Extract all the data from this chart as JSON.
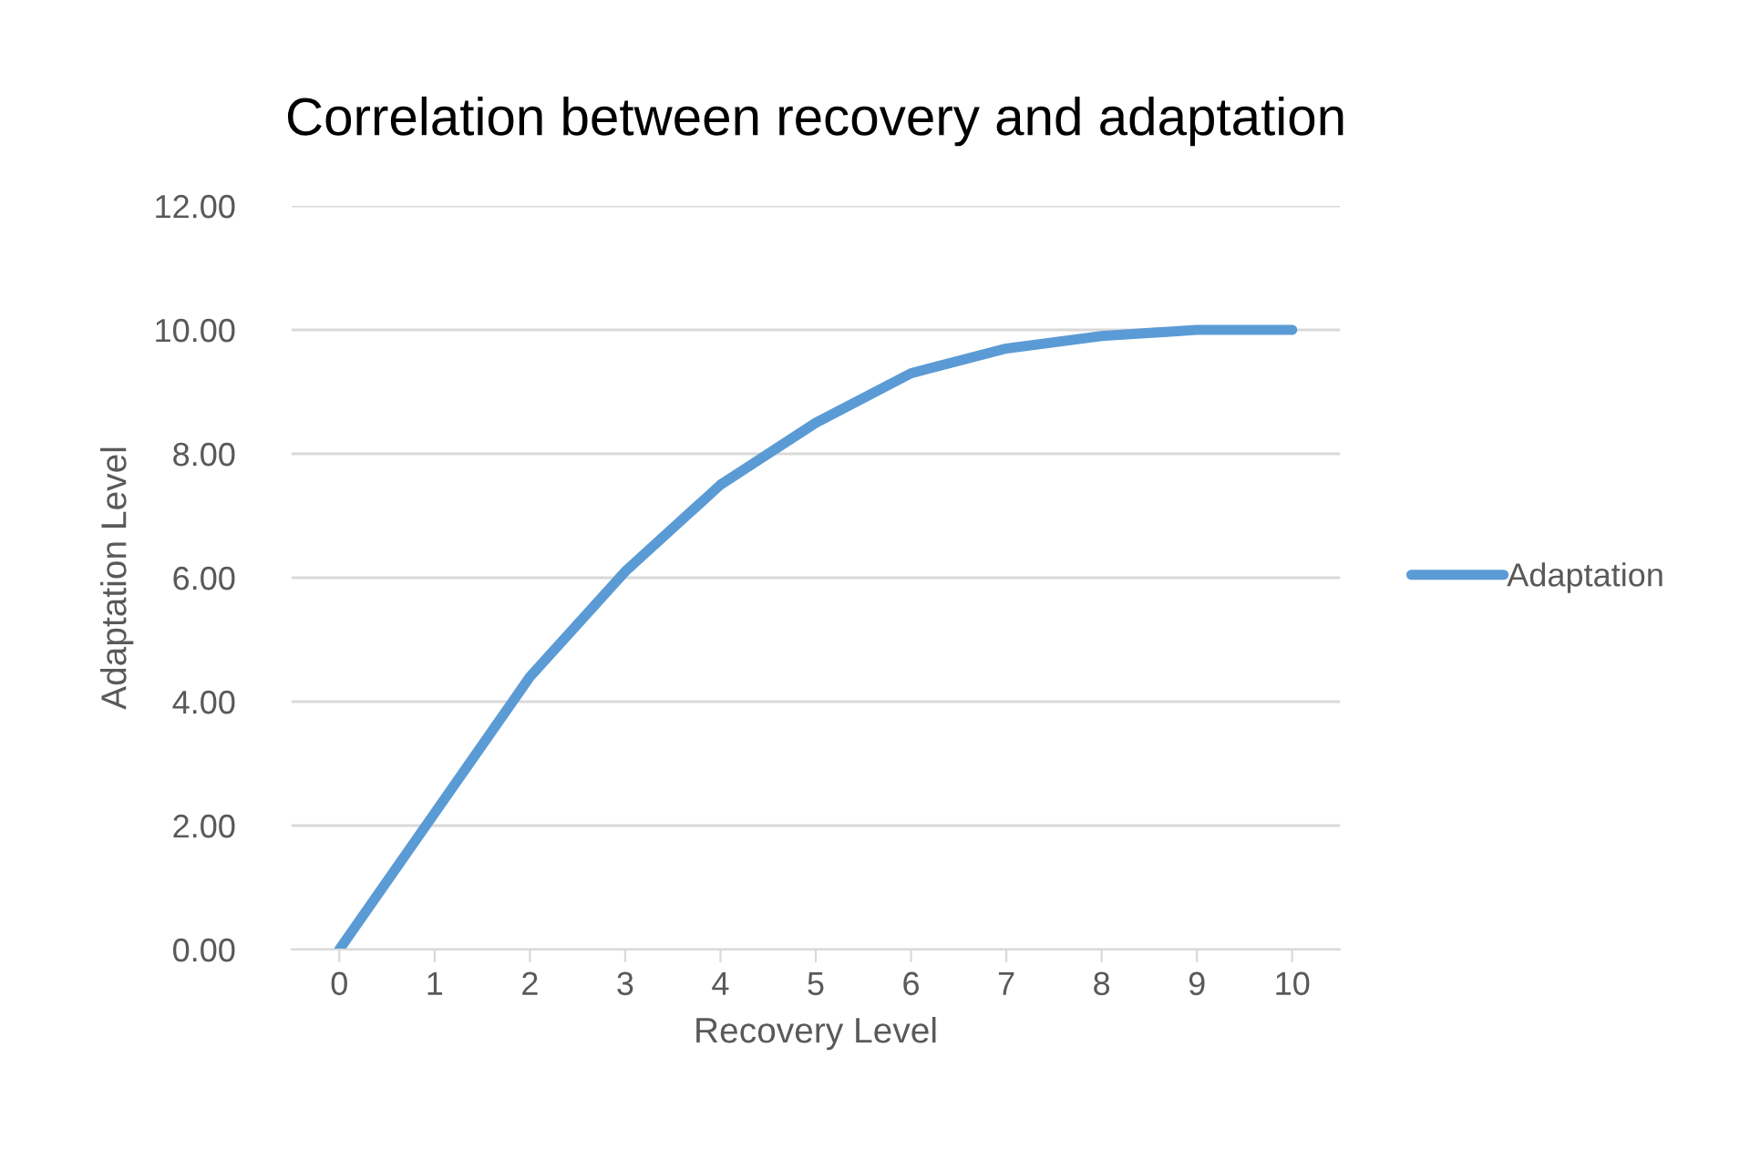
{
  "chart_data": {
    "type": "line",
    "title": "Correlation between recovery and adaptation",
    "xlabel": "Recovery Level",
    "ylabel": "Adaptation Level",
    "categories": [
      "0",
      "1",
      "2",
      "3",
      "4",
      "5",
      "6",
      "7",
      "8",
      "9",
      "10"
    ],
    "series": [
      {
        "name": "Adaptation",
        "color": "#5b9bd5",
        "values": [
          0,
          2.2,
          4.4,
          6.1,
          7.5,
          8.5,
          9.3,
          9.7,
          9.9,
          10.0,
          10.0
        ]
      }
    ],
    "ylim": [
      0,
      12
    ],
    "yticks": [
      {
        "value": 0,
        "label": "0.00"
      },
      {
        "value": 2,
        "label": "2.00"
      },
      {
        "value": 4,
        "label": "4.00"
      },
      {
        "value": 6,
        "label": "6.00"
      },
      {
        "value": 8,
        "label": "8.00"
      },
      {
        "value": 10,
        "label": "10.00"
      },
      {
        "value": 12,
        "label": "12.00"
      }
    ],
    "grid": "y",
    "legend": "right",
    "marker": "none",
    "line_style": "solid"
  }
}
